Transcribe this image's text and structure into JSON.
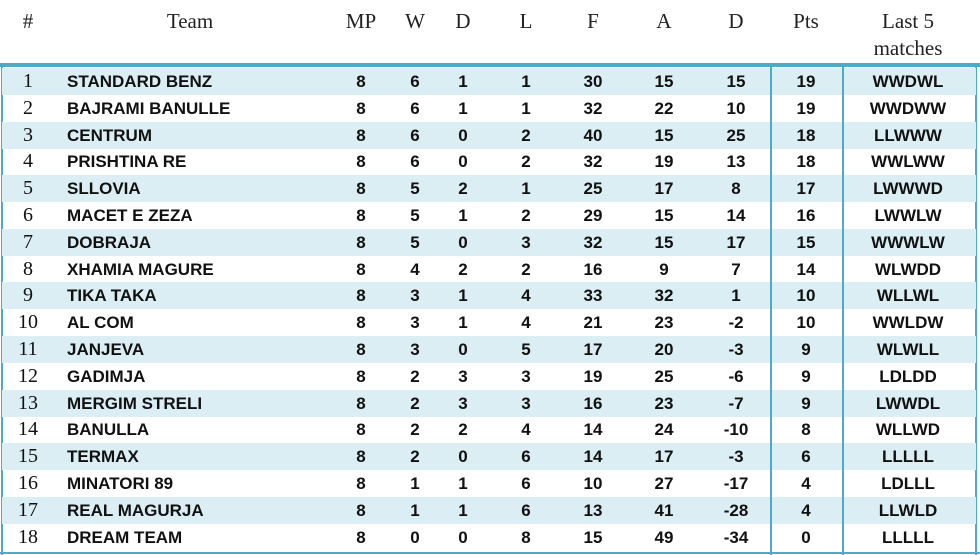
{
  "table": {
    "headers": [
      "#",
      "Team",
      "MP",
      "W",
      "D",
      "L",
      "F",
      "A",
      "D",
      "Pts",
      "Last 5 matches"
    ],
    "rows": [
      [
        1,
        "STANDARD BENZ",
        8,
        6,
        1,
        1,
        30,
        15,
        15,
        19,
        "WWDWL"
      ],
      [
        2,
        "BAJRAMI BANULLE",
        8,
        6,
        1,
        1,
        32,
        22,
        10,
        19,
        "WWDWW"
      ],
      [
        3,
        "CENTRUM",
        8,
        6,
        0,
        2,
        40,
        15,
        25,
        18,
        "LLWWW"
      ],
      [
        4,
        "PRISHTINA  RE",
        8,
        6,
        0,
        2,
        32,
        19,
        13,
        18,
        "WWLWW"
      ],
      [
        5,
        "SLLOVIA",
        8,
        5,
        2,
        1,
        25,
        17,
        8,
        17,
        "LWWWD"
      ],
      [
        6,
        "MACET E ZEZA",
        8,
        5,
        1,
        2,
        29,
        15,
        14,
        16,
        "LWWLW"
      ],
      [
        7,
        "DOBRAJA",
        8,
        5,
        0,
        3,
        32,
        15,
        17,
        15,
        "WWWLW"
      ],
      [
        8,
        "XHAMIA MAGURE",
        8,
        4,
        2,
        2,
        16,
        9,
        7,
        14,
        "WLWDD"
      ],
      [
        9,
        "TIKA TAKA",
        8,
        3,
        1,
        4,
        33,
        32,
        1,
        10,
        "WLLWL"
      ],
      [
        10,
        "AL COM",
        8,
        3,
        1,
        4,
        21,
        23,
        -2,
        10,
        "WWLDW"
      ],
      [
        11,
        "JANJEVA",
        8,
        3,
        0,
        5,
        17,
        20,
        -3,
        9,
        "WLWLL"
      ],
      [
        12,
        "GADIMJA",
        8,
        2,
        3,
        3,
        19,
        25,
        -6,
        9,
        "LDLDD"
      ],
      [
        13,
        "MERGIM STRELI",
        8,
        2,
        3,
        3,
        16,
        23,
        -7,
        9,
        "LWWDL"
      ],
      [
        14,
        "BANULLA",
        8,
        2,
        2,
        4,
        14,
        24,
        -10,
        8,
        "WLLWD"
      ],
      [
        15,
        "TERMAX",
        8,
        2,
        0,
        6,
        14,
        17,
        -3,
        6,
        "LLLLL"
      ],
      [
        16,
        "MINATORI 89",
        8,
        1,
        1,
        6,
        10,
        27,
        -17,
        4,
        "LDLLL"
      ],
      [
        17,
        "REAL MAGURJA",
        8,
        1,
        1,
        6,
        13,
        41,
        -28,
        4,
        "LLWLD"
      ],
      [
        18,
        "DREAM TEAM",
        8,
        0,
        0,
        8,
        15,
        49,
        -34,
        0,
        "LLLLL"
      ]
    ]
  }
}
